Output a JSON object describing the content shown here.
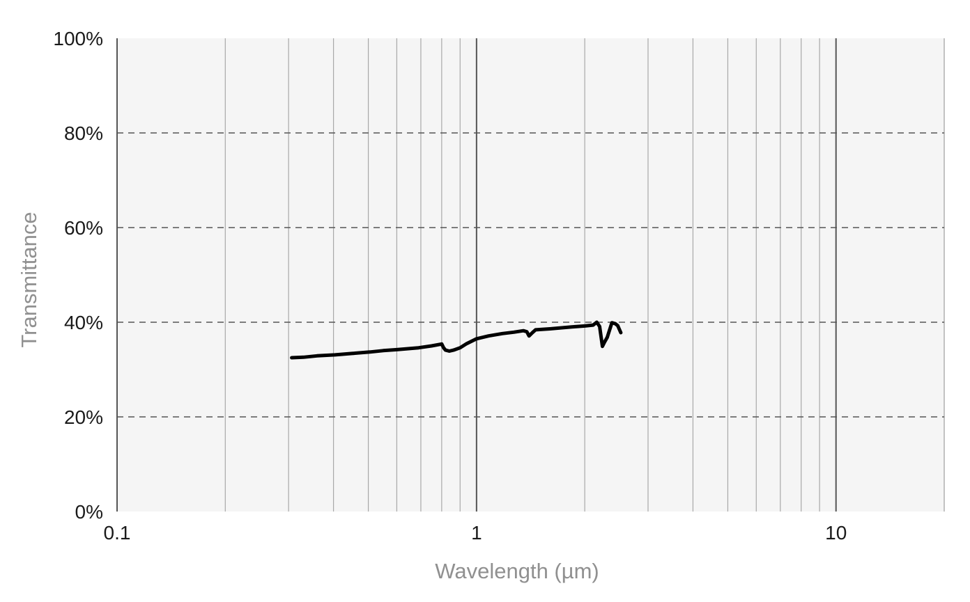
{
  "chart_data": {
    "type": "line",
    "xlabel": "Wavelength (µm)",
    "ylabel": "Transmittance",
    "x_scale": "log",
    "xlim": [
      0.1,
      20
    ],
    "ylim": [
      0,
      100
    ],
    "x_ticks": [
      {
        "value": 0.1,
        "label": "0.1"
      },
      {
        "value": 1,
        "label": "1"
      },
      {
        "value": 10,
        "label": "10"
      }
    ],
    "y_ticks": [
      {
        "value": 0,
        "label": "0%"
      },
      {
        "value": 20,
        "label": "20%"
      },
      {
        "value": 40,
        "label": "40%"
      },
      {
        "value": 60,
        "label": "60%"
      },
      {
        "value": 80,
        "label": "80%"
      },
      {
        "value": 100,
        "label": "100%"
      }
    ],
    "grid": {
      "x": "major and minor, solid",
      "y": "dashed"
    },
    "colors": {
      "plot_background": "#f5f5f5",
      "line": "#000000",
      "axis_label": "#909090"
    },
    "series": [
      {
        "x": [
          0.306,
          0.33,
          0.36,
          0.404,
          0.45,
          0.505,
          0.55,
          0.6,
          0.69,
          0.75,
          0.8,
          0.81,
          0.82,
          0.84,
          0.863,
          0.9,
          0.935,
          1.0,
          1.08,
          1.18,
          1.27,
          1.35,
          1.38,
          1.4,
          1.43,
          1.46,
          1.6,
          1.84,
          2.0,
          2.11,
          2.16,
          2.2,
          2.24,
          2.27,
          2.31,
          2.38,
          2.43,
          2.47,
          2.52
        ],
        "y": [
          32.5,
          32.6,
          32.9,
          33.1,
          33.4,
          33.7,
          34.0,
          34.2,
          34.6,
          35.0,
          35.4,
          34.6,
          34.1,
          33.9,
          34.1,
          34.6,
          35.4,
          36.5,
          37.1,
          37.6,
          37.9,
          38.2,
          38.0,
          37.1,
          37.8,
          38.4,
          38.6,
          39.0,
          39.2,
          39.4,
          40.0,
          39.1,
          34.9,
          35.8,
          36.8,
          39.9,
          39.7,
          39.3,
          37.8
        ]
      }
    ]
  }
}
